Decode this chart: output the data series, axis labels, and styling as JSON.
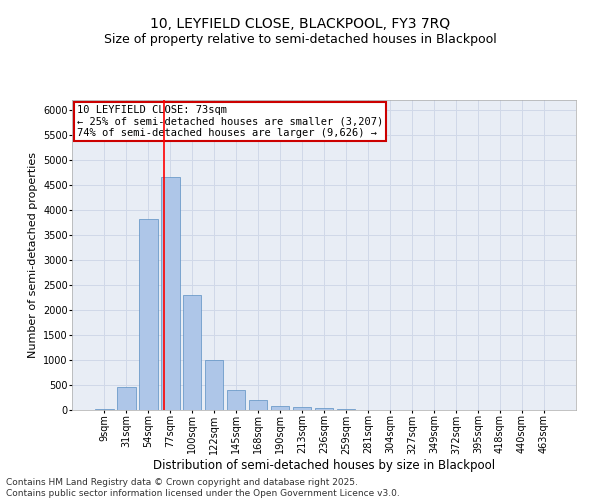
{
  "title1": "10, LEYFIELD CLOSE, BLACKPOOL, FY3 7RQ",
  "title2": "Size of property relative to semi-detached houses in Blackpool",
  "xlabel": "Distribution of semi-detached houses by size in Blackpool",
  "ylabel": "Number of semi-detached properties",
  "bar_labels": [
    "9sqm",
    "31sqm",
    "54sqm",
    "77sqm",
    "100sqm",
    "122sqm",
    "145sqm",
    "168sqm",
    "190sqm",
    "213sqm",
    "236sqm",
    "259sqm",
    "281sqm",
    "304sqm",
    "327sqm",
    "349sqm",
    "372sqm",
    "395sqm",
    "418sqm",
    "440sqm",
    "463sqm"
  ],
  "bar_values": [
    30,
    470,
    3820,
    4670,
    2300,
    1000,
    410,
    200,
    80,
    60,
    50,
    30,
    0,
    0,
    0,
    0,
    0,
    0,
    0,
    0,
    0
  ],
  "bar_color": "#aec6e8",
  "bar_edgecolor": "#5a8fc2",
  "redline_x": 2.72,
  "annotation_title": "10 LEYFIELD CLOSE: 73sqm",
  "annotation_line1": "← 25% of semi-detached houses are smaller (3,207)",
  "annotation_line2": "74% of semi-detached houses are larger (9,626) →",
  "annotation_box_color": "#ffffff",
  "annotation_box_edge": "#cc0000",
  "ylim": [
    0,
    6200
  ],
  "yticks": [
    0,
    500,
    1000,
    1500,
    2000,
    2500,
    3000,
    3500,
    4000,
    4500,
    5000,
    5500,
    6000
  ],
  "grid_color": "#d0d8e8",
  "background_color": "#e8edf5",
  "footer": "Contains HM Land Registry data © Crown copyright and database right 2025.\nContains public sector information licensed under the Open Government Licence v3.0.",
  "title1_fontsize": 10,
  "title2_fontsize": 9,
  "xlabel_fontsize": 8.5,
  "ylabel_fontsize": 8,
  "tick_fontsize": 7,
  "annot_fontsize": 7.5,
  "footer_fontsize": 6.5
}
